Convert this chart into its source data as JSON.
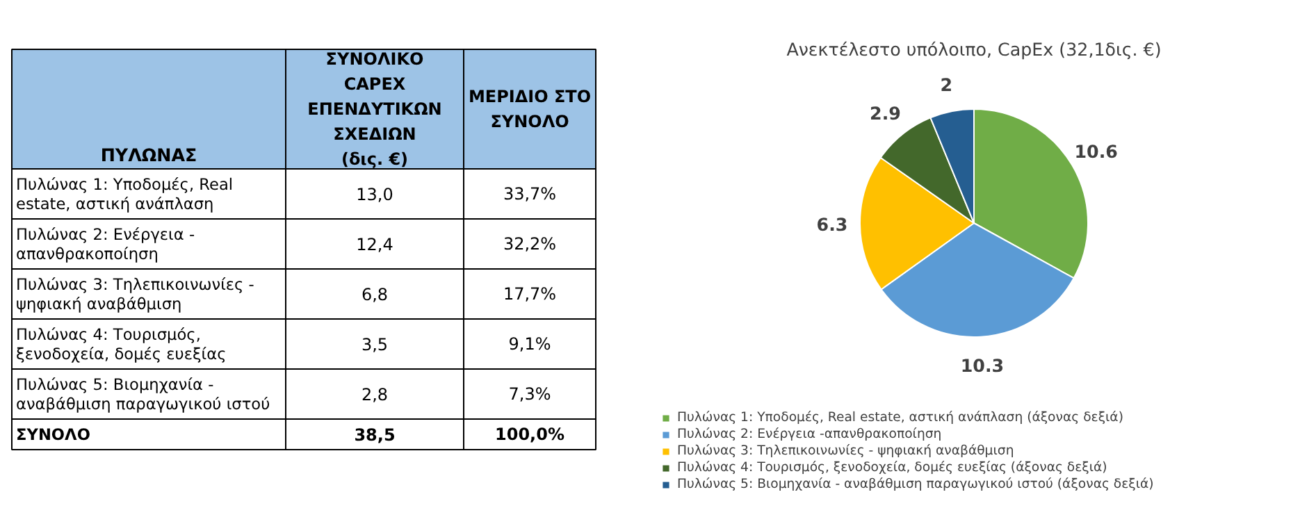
{
  "chart_data": [
    {
      "type": "other",
      "ylabel": "ΠΥΛΩΝΑΣ",
      "categories": [
        "Πυλώνας 1: Υποδομές, Real estate, αστική ανάπλαση",
        "Πυλώνας 2: Ενέργεια - απανθρακοποίηση",
        "Πυλώνας 3: Τηλεπικοινωνίες - ψηφιακή αναβάθμιση",
        "Πυλώνας 4: Τουρισμός, ξενοδοχεία, δομές ευεξίας",
        "Πυλώνας 5: Βιομηχανία - αναβάθμιση παραγωγικού ιστού",
        "ΣΥΝΟΛΟ"
      ],
      "series": [
        {
          "name": "ΣΥΝΟΛΙΚΟ CAPEX ΕΠΕΝΔΥΤΙΚΩΝ ΣΧΕΔΙΩΝ (δις. €)",
          "values": [
            13.0,
            12.4,
            6.8,
            3.5,
            2.8,
            38.5
          ],
          "value_labels": [
            "13,0",
            "12,4",
            "6,8",
            "3,5",
            "2,8",
            "38,5"
          ]
        },
        {
          "name": "ΜΕΡΙΔΙΟ ΣΤΟ ΣΥΝΟΛΟ",
          "values": [
            33.7,
            32.2,
            17.7,
            9.1,
            7.3,
            100.0
          ],
          "value_labels": [
            "33,7%",
            "32,2%",
            "17,7%",
            "9,1%",
            "7,3%",
            "100,0%"
          ]
        }
      ]
    },
    {
      "type": "pie",
      "title": "Ανεκτέλεστο υπόλοιπο, CapEx (32,1δις. €)",
      "categories": [
        "Πυλώνας 1: Υποδομές, Real estate, αστική ανάπλαση (άξονας δεξιά)",
        "Πυλώνας 2: Ενέργεια -απανθρακοποίηση",
        "Πυλώνας 3: Τηλεπικοινωνίες - ψηφιακή αναβάθμιση",
        "Πυλώνας 4: Τουρισμός, ξενοδοχεία, δομές ευεξίας (άξονας δεξιά)",
        "Πυλώνας 5: Βιομηχανία - αναβάθμιση παραγωγικού ιστού (άξονας δεξιά)"
      ],
      "values": [
        10.6,
        10.3,
        6.3,
        2.9,
        2
      ],
      "colors": [
        "#70ad47",
        "#5b9bd5",
        "#ffc000",
        "#43682b",
        "#255e91"
      ],
      "data_labels": true,
      "legend": "bottom"
    }
  ]
}
